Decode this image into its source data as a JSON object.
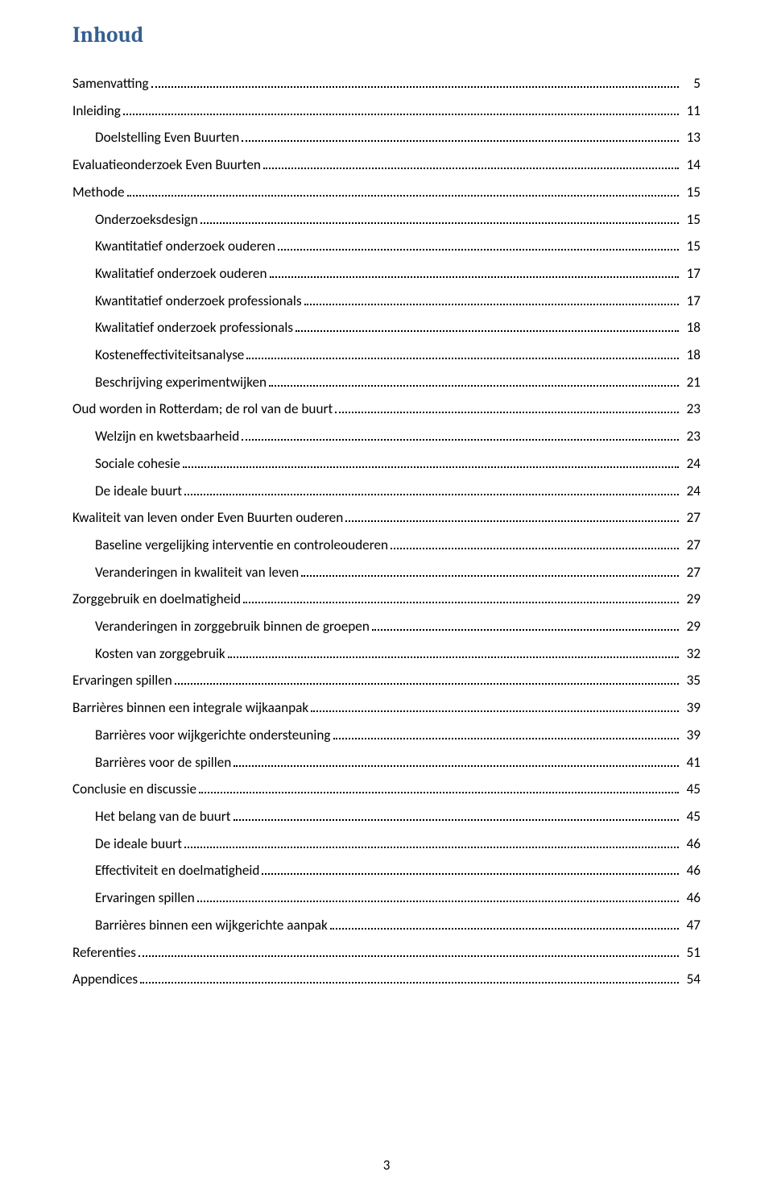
{
  "title": "Inhoud",
  "page_number": "3",
  "colors": {
    "heading": "#365f91",
    "text": "#000000",
    "background": "#ffffff"
  },
  "typography": {
    "heading_font": "Cambria",
    "body_font": "Calibri",
    "heading_size_pt": 20,
    "body_size_pt": 12
  },
  "toc": [
    {
      "level": 1,
      "label": "Samenvatting",
      "page": "5"
    },
    {
      "level": 1,
      "label": "Inleiding",
      "page": "11"
    },
    {
      "level": 2,
      "label": "Doelstelling Even Buurten",
      "page": "13"
    },
    {
      "level": 1,
      "label": "Evaluatieonderzoek Even Buurten",
      "page": "14"
    },
    {
      "level": 1,
      "label": "Methode",
      "page": "15"
    },
    {
      "level": 2,
      "label": "Onderzoeksdesign",
      "page": "15"
    },
    {
      "level": 2,
      "label": "Kwantitatief onderzoek ouderen",
      "page": "15"
    },
    {
      "level": 2,
      "label": "Kwalitatief onderzoek ouderen",
      "page": "17"
    },
    {
      "level": 2,
      "label": "Kwantitatief onderzoek professionals",
      "page": "17"
    },
    {
      "level": 2,
      "label": "Kwalitatief onderzoek professionals",
      "page": "18"
    },
    {
      "level": 2,
      "label": "Kosteneffectiviteitsanalyse",
      "page": "18"
    },
    {
      "level": 2,
      "label": "Beschrijving experimentwijken",
      "page": "21"
    },
    {
      "level": 1,
      "label": "Oud worden in Rotterdam; de rol van de buurt",
      "page": "23"
    },
    {
      "level": 2,
      "label": "Welzijn en kwetsbaarheid",
      "page": "23"
    },
    {
      "level": 2,
      "label": "Sociale cohesie",
      "page": "24"
    },
    {
      "level": 2,
      "label": "De ideale buurt",
      "page": "24"
    },
    {
      "level": 1,
      "label": "Kwaliteit van leven onder Even Buurten ouderen",
      "page": "27"
    },
    {
      "level": 2,
      "label": "Baseline vergelijking interventie en controleouderen",
      "page": "27"
    },
    {
      "level": 2,
      "label": "Veranderingen in kwaliteit van leven",
      "page": "27"
    },
    {
      "level": 1,
      "label": "Zorggebruik en doelmatigheid",
      "page": "29"
    },
    {
      "level": 2,
      "label": "Veranderingen in zorggebruik binnen de groepen",
      "page": "29"
    },
    {
      "level": 2,
      "label": "Kosten van zorggebruik",
      "page": "32"
    },
    {
      "level": 1,
      "label": "Ervaringen spillen",
      "page": "35"
    },
    {
      "level": 1,
      "label": "Barrières binnen een integrale wijkaanpak",
      "page": "39"
    },
    {
      "level": 2,
      "label": "Barrières voor wijkgerichte ondersteuning",
      "page": "39"
    },
    {
      "level": 2,
      "label": "Barrières voor de spillen",
      "page": "41"
    },
    {
      "level": 1,
      "label": "Conclusie en discussie",
      "page": "45"
    },
    {
      "level": 2,
      "label": "Het belang van de buurt",
      "page": "45"
    },
    {
      "level": 2,
      "label": "De ideale buurt",
      "page": "46"
    },
    {
      "level": 2,
      "label": "Effectiviteit en doelmatigheid",
      "page": "46"
    },
    {
      "level": 2,
      "label": "Ervaringen spillen",
      "page": "46"
    },
    {
      "level": 2,
      "label": "Barrières binnen een wijkgerichte aanpak",
      "page": "47"
    },
    {
      "level": 1,
      "label": "Referenties",
      "page": "51"
    },
    {
      "level": 1,
      "label": "Appendices",
      "page": "54"
    }
  ]
}
